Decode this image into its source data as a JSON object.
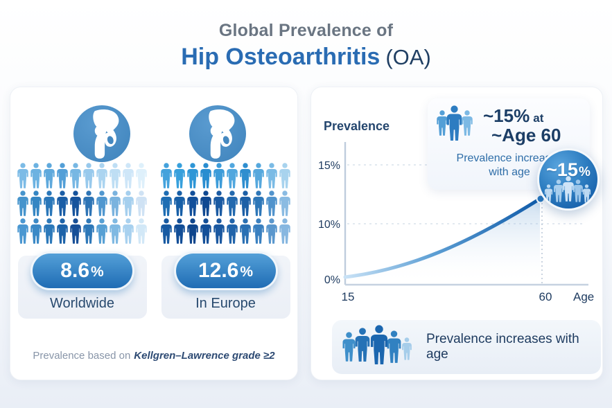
{
  "title": {
    "line1": "Global Prevalence of",
    "main": "Hip Osteoarthritis",
    "suffix": "(OA)"
  },
  "left_panel": {
    "worldwide": {
      "number": "8.6",
      "unit": "%",
      "label": "Worldwide"
    },
    "europe": {
      "number": "12.6",
      "unit": "%",
      "label": "In Europe"
    },
    "footnote_prefix": "Prevalence based on",
    "footnote_italic": "Kellgren–Lawrence grade ≥2",
    "crowd_worldwide_rows": [
      [
        "#7cbbe6",
        "#6cb2e1",
        "#5fa9dc",
        "#539fd7",
        "#77b7e3",
        "#98c9ec",
        "#abd4f0",
        "#bedef4",
        "#cee6f8",
        "#def0fb"
      ],
      [
        "#4694cc",
        "#3586c3",
        "#2a77b9",
        "#1b5ea6",
        "#16539c",
        "#2e74b5",
        "#5097cf",
        "#7ab3de",
        "#a5cfee",
        "#cfe2f4"
      ],
      [
        "#4a97d1",
        "#3a89c6",
        "#2c79ba",
        "#1d63a9",
        "#174f97",
        "#2e78b8",
        "#57a0d4",
        "#7fb9e2",
        "#a8d1ef",
        "#d2e8f7"
      ]
    ],
    "crowd_europe_rows": [
      [
        "#44a2dc",
        "#37a0dc",
        "#2e96d6",
        "#298dd0",
        "#3d9cd9",
        "#51a7de",
        "#2e8ecf",
        "#56a8dd",
        "#7bbbe5",
        "#a8d3ee"
      ],
      [
        "#1e6db3",
        "#175fa7",
        "#124f9a",
        "#0f4891",
        "#1a5aa2",
        "#2369ae",
        "#1c5fa6",
        "#2e77b8",
        "#5193cc",
        "#8abbe2"
      ],
      [
        "#175aa2",
        "#124e97",
        "#0e458c",
        "#134f98",
        "#1a58a0",
        "#2164aa",
        "#2a70b3",
        "#3a80c0",
        "#5a97cd",
        "#87b7e0"
      ]
    ]
  },
  "right_panel": {
    "ylabel": "Prevalence",
    "yticks": [
      "15%",
      "10%",
      "0%"
    ],
    "xtick_start": "15",
    "xtick_end": "60",
    "xlabel": "Age",
    "callout": {
      "stat_bold": "~15%",
      "stat_suffix": "at",
      "stat_line2": "~Age 60",
      "caption_line1": "Prevalence increases",
      "caption_line2": "with age"
    },
    "badge": {
      "number": "~15",
      "unit": "%"
    },
    "banner": {
      "text": "Prevalence increases with age"
    }
  },
  "icon_people": {
    "callout": [
      "#549fd6",
      "#7cb9e4",
      "#2d7cc1"
    ],
    "banner": [
      "#a6cdea",
      "#3f8fca",
      "#3181c1",
      "#2672b6",
      "#1b66af"
    ],
    "badge_circle": [
      "#cfe4f7",
      "#a9cfee",
      "#9cc6ea",
      "#bcd9f2",
      "#bcd9f2"
    ]
  },
  "icons": {
    "hip_joint": "hip-joint-icon",
    "person": "person-icon"
  },
  "colors": {
    "accent_blue": "#2a6cb3",
    "navy": "#1d3a5f",
    "title_gray": "#6a7582",
    "badge_gradient_top": "#54a0d8",
    "badge_gradient_bottom": "#1f6cb4",
    "line_gradient_start": "#c9e2f6",
    "line_gradient_end": "#0f5aa8"
  },
  "chart_data": [
    {
      "type": "bar",
      "subtype": "pictogram",
      "title": "Global prevalence of hip osteoarthritis (OA)",
      "categories": [
        "Worldwide",
        "In Europe"
      ],
      "values": [
        8.6,
        12.6
      ],
      "unit": "%",
      "note": "Prevalence based on Kellgren–Lawrence grade ≥2"
    },
    {
      "type": "line",
      "title": "Hip OA prevalence increases with age",
      "xlabel": "Age",
      "ylabel": "Prevalence",
      "x": [
        15,
        20,
        25,
        30,
        35,
        40,
        45,
        50,
        55,
        60
      ],
      "y": [
        0.3,
        0.9,
        1.8,
        3.0,
        4.5,
        6.3,
        8.4,
        10.7,
        12.9,
        15.0
      ],
      "xticks": [
        15,
        60
      ],
      "ytick_labels": [
        "0%",
        "10%",
        "15%"
      ],
      "ylim": [
        0,
        17
      ],
      "annotation": "~15% at ~Age 60",
      "grid": "dashed-horizontal"
    }
  ]
}
